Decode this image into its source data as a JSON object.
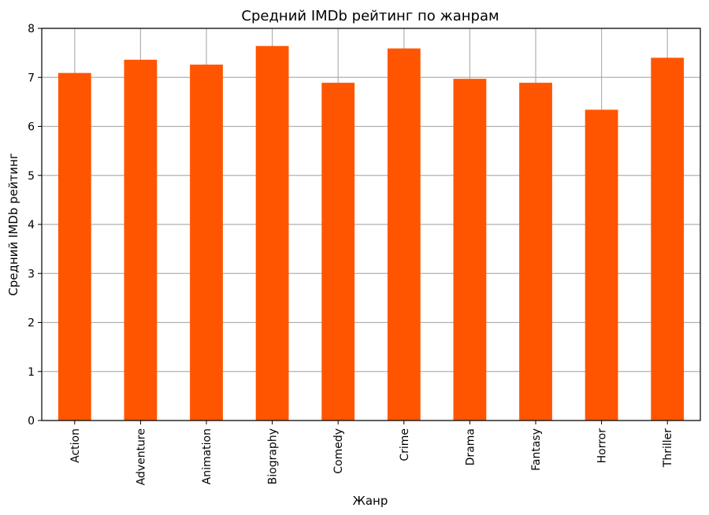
{
  "chart_data": {
    "type": "bar",
    "title": "Средний IMDb рейтинг по жанрам",
    "xlabel": "Жанр",
    "ylabel": "Средний IMDb рейтинг",
    "categories": [
      "Action",
      "Adventure",
      "Animation",
      "Biography",
      "Comedy",
      "Crime",
      "Drama",
      "Fantasy",
      "Horror",
      "Thriller"
    ],
    "values": [
      7.09,
      7.36,
      7.26,
      7.64,
      6.89,
      7.59,
      6.97,
      6.89,
      6.34,
      7.4
    ],
    "ylim": [
      0,
      8
    ],
    "yticks": [
      0,
      1,
      2,
      3,
      4,
      5,
      6,
      7,
      8
    ],
    "grid": true,
    "bar_color": "#ff5500",
    "grid_color": "#b0b0b0"
  }
}
